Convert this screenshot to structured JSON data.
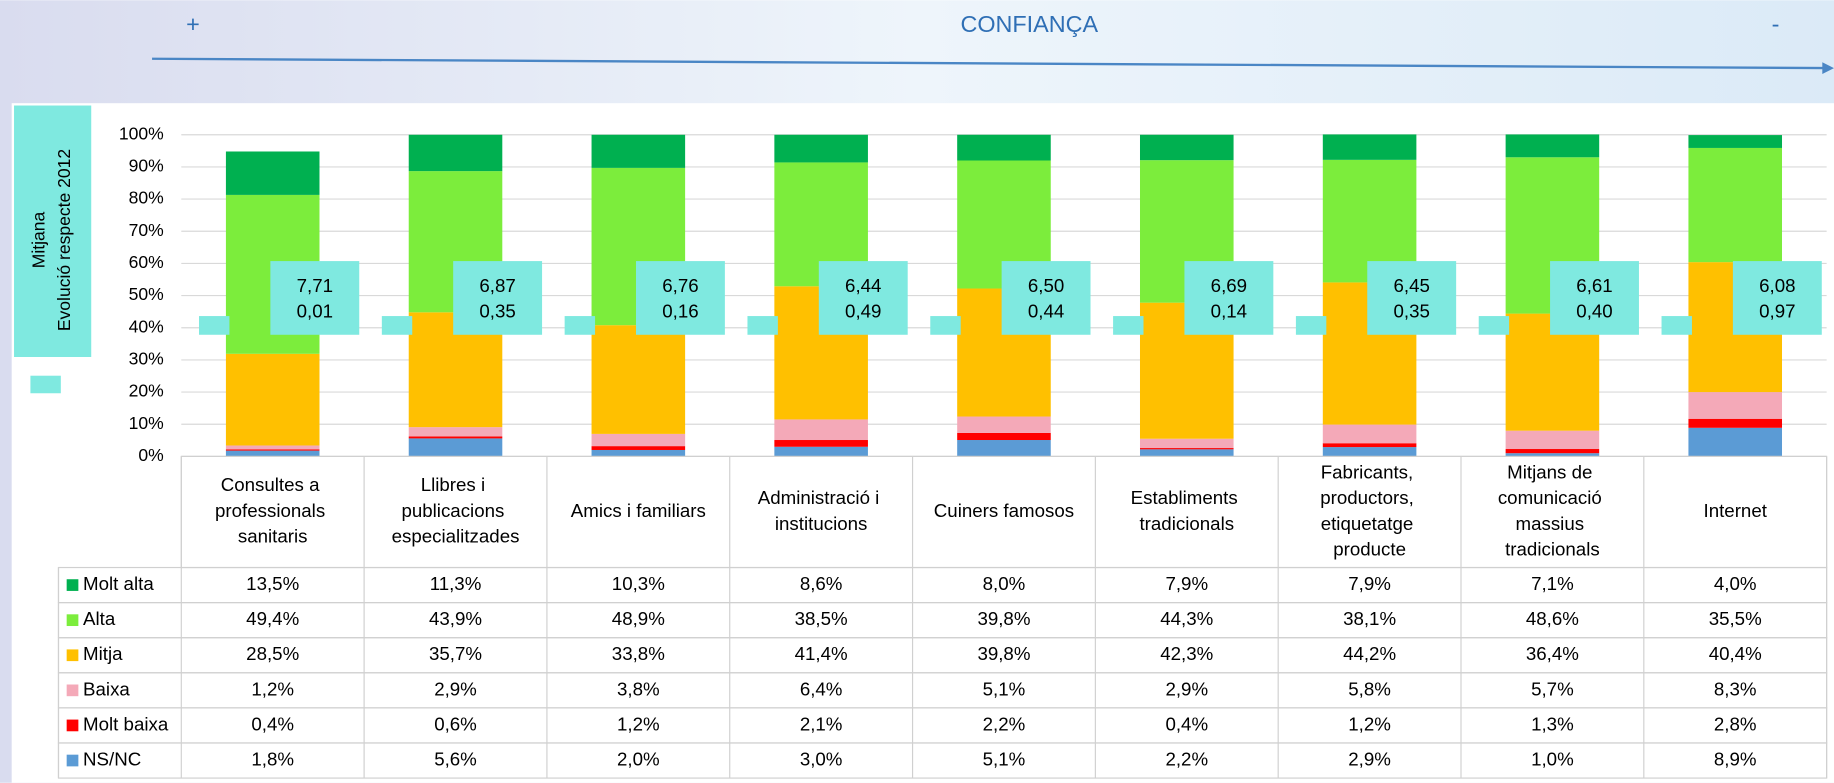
{
  "chart_data": {
    "type": "stacked_bar_percent",
    "title": "CONFIANÇA",
    "annotations": [
      "+",
      "-"
    ],
    "legend_title": [
      "Mitjana",
      "Evolució respecte 2012"
    ],
    "categories": [
      "Consultes a professionals sanitaris",
      "Llibres i publicacions especialitzades",
      "Amics i familiars",
      "Administració i institucions",
      "Cuiners famosos",
      "Establiments tradicionals",
      "Fabricants, productors, etiquetatge producte",
      "Mitjans de comunicació massius tradicionals",
      "Internet"
    ],
    "ylim": [
      0,
      100
    ],
    "yticks": [
      {
        "value": 0,
        "label": "0%"
      },
      {
        "value": 10,
        "label": "10%"
      },
      {
        "value": 20,
        "label": "20%"
      },
      {
        "value": 30,
        "label": "30%"
      },
      {
        "value": 40,
        "label": "40%"
      },
      {
        "value": 50,
        "label": "50%"
      },
      {
        "value": 60,
        "label": "60%"
      },
      {
        "value": 70,
        "label": "70%"
      },
      {
        "value": 80,
        "label": "80%"
      },
      {
        "value": 90,
        "label": "90%"
      },
      {
        "value": 100,
        "label": "100%"
      }
    ],
    "grid": true,
    "series": [
      {
        "name": "Molt alta",
        "color": "#00b050",
        "values": [
          13.5,
          11.3,
          10.3,
          8.6,
          8.0,
          7.9,
          7.9,
          7.1,
          4.0
        ],
        "value_labels": [
          "13,5%",
          "11,3%",
          "10,3%",
          "8,6%",
          "8,0%",
          "7,9%",
          "7,9%",
          "7,1%",
          "4,0%"
        ]
      },
      {
        "name": "Alta",
        "color": "#7ced3c",
        "values": [
          49.4,
          43.9,
          48.9,
          38.5,
          39.8,
          44.3,
          38.1,
          48.6,
          35.5
        ],
        "value_labels": [
          "49,4%",
          "43,9%",
          "48,9%",
          "38,5%",
          "39,8%",
          "44,3%",
          "38,1%",
          "48,6%",
          "35,5%"
        ]
      },
      {
        "name": "Mitja",
        "color": "#ffc000",
        "values": [
          28.5,
          35.7,
          33.8,
          41.4,
          39.8,
          42.3,
          44.2,
          36.4,
          40.4
        ],
        "value_labels": [
          "28,5%",
          "35,7%",
          "33,8%",
          "41,4%",
          "39,8%",
          "42,3%",
          "44,2%",
          "36,4%",
          "40,4%"
        ]
      },
      {
        "name": "Baixa",
        "color": "#f4a9b8",
        "values": [
          1.2,
          2.9,
          3.8,
          6.4,
          5.1,
          2.9,
          5.8,
          5.7,
          8.3
        ],
        "value_labels": [
          "1,2%",
          "2,9%",
          "3,8%",
          "6,4%",
          "5,1%",
          "2,9%",
          "5,8%",
          "5,7%",
          "8,3%"
        ]
      },
      {
        "name": "Molt baixa",
        "color": "#ff0000",
        "values": [
          0.4,
          0.6,
          1.2,
          2.1,
          2.2,
          0.4,
          1.2,
          1.3,
          2.8
        ],
        "value_labels": [
          "0,4%",
          "0,6%",
          "1,2%",
          "2,1%",
          "2,2%",
          "0,4%",
          "1,2%",
          "1,3%",
          "2,8%"
        ]
      },
      {
        "name": "NS/NC",
        "color": "#5b9bd5",
        "values": [
          1.8,
          5.6,
          2.0,
          3.0,
          5.1,
          2.2,
          2.9,
          1.0,
          8.9
        ],
        "value_labels": [
          "1,8%",
          "5,6%",
          "2,0%",
          "3,0%",
          "5,1%",
          "2,2%",
          "2,9%",
          "1,0%",
          "8,9%"
        ]
      }
    ],
    "mitjana": {
      "name": "Mitjana",
      "color": "#7fe9e0",
      "values": [
        7.71,
        6.87,
        6.76,
        6.44,
        6.5,
        6.69,
        6.45,
        6.61,
        6.08
      ],
      "value_labels": [
        "7,71",
        "6,87",
        "6,76",
        "6,44",
        "6,50",
        "6,69",
        "6,45",
        "6,61",
        "6,08"
      ]
    },
    "evolucio": {
      "name": "Evolució respecte 2012",
      "values": [
        0.01,
        0.35,
        0.16,
        0.49,
        0.44,
        0.14,
        0.35,
        0.4,
        0.97
      ],
      "value_labels": [
        "0,01",
        "0,35",
        "0,16",
        "0,49",
        "0,44",
        "0,14",
        "0,35",
        "0,40",
        "0,97"
      ]
    }
  }
}
